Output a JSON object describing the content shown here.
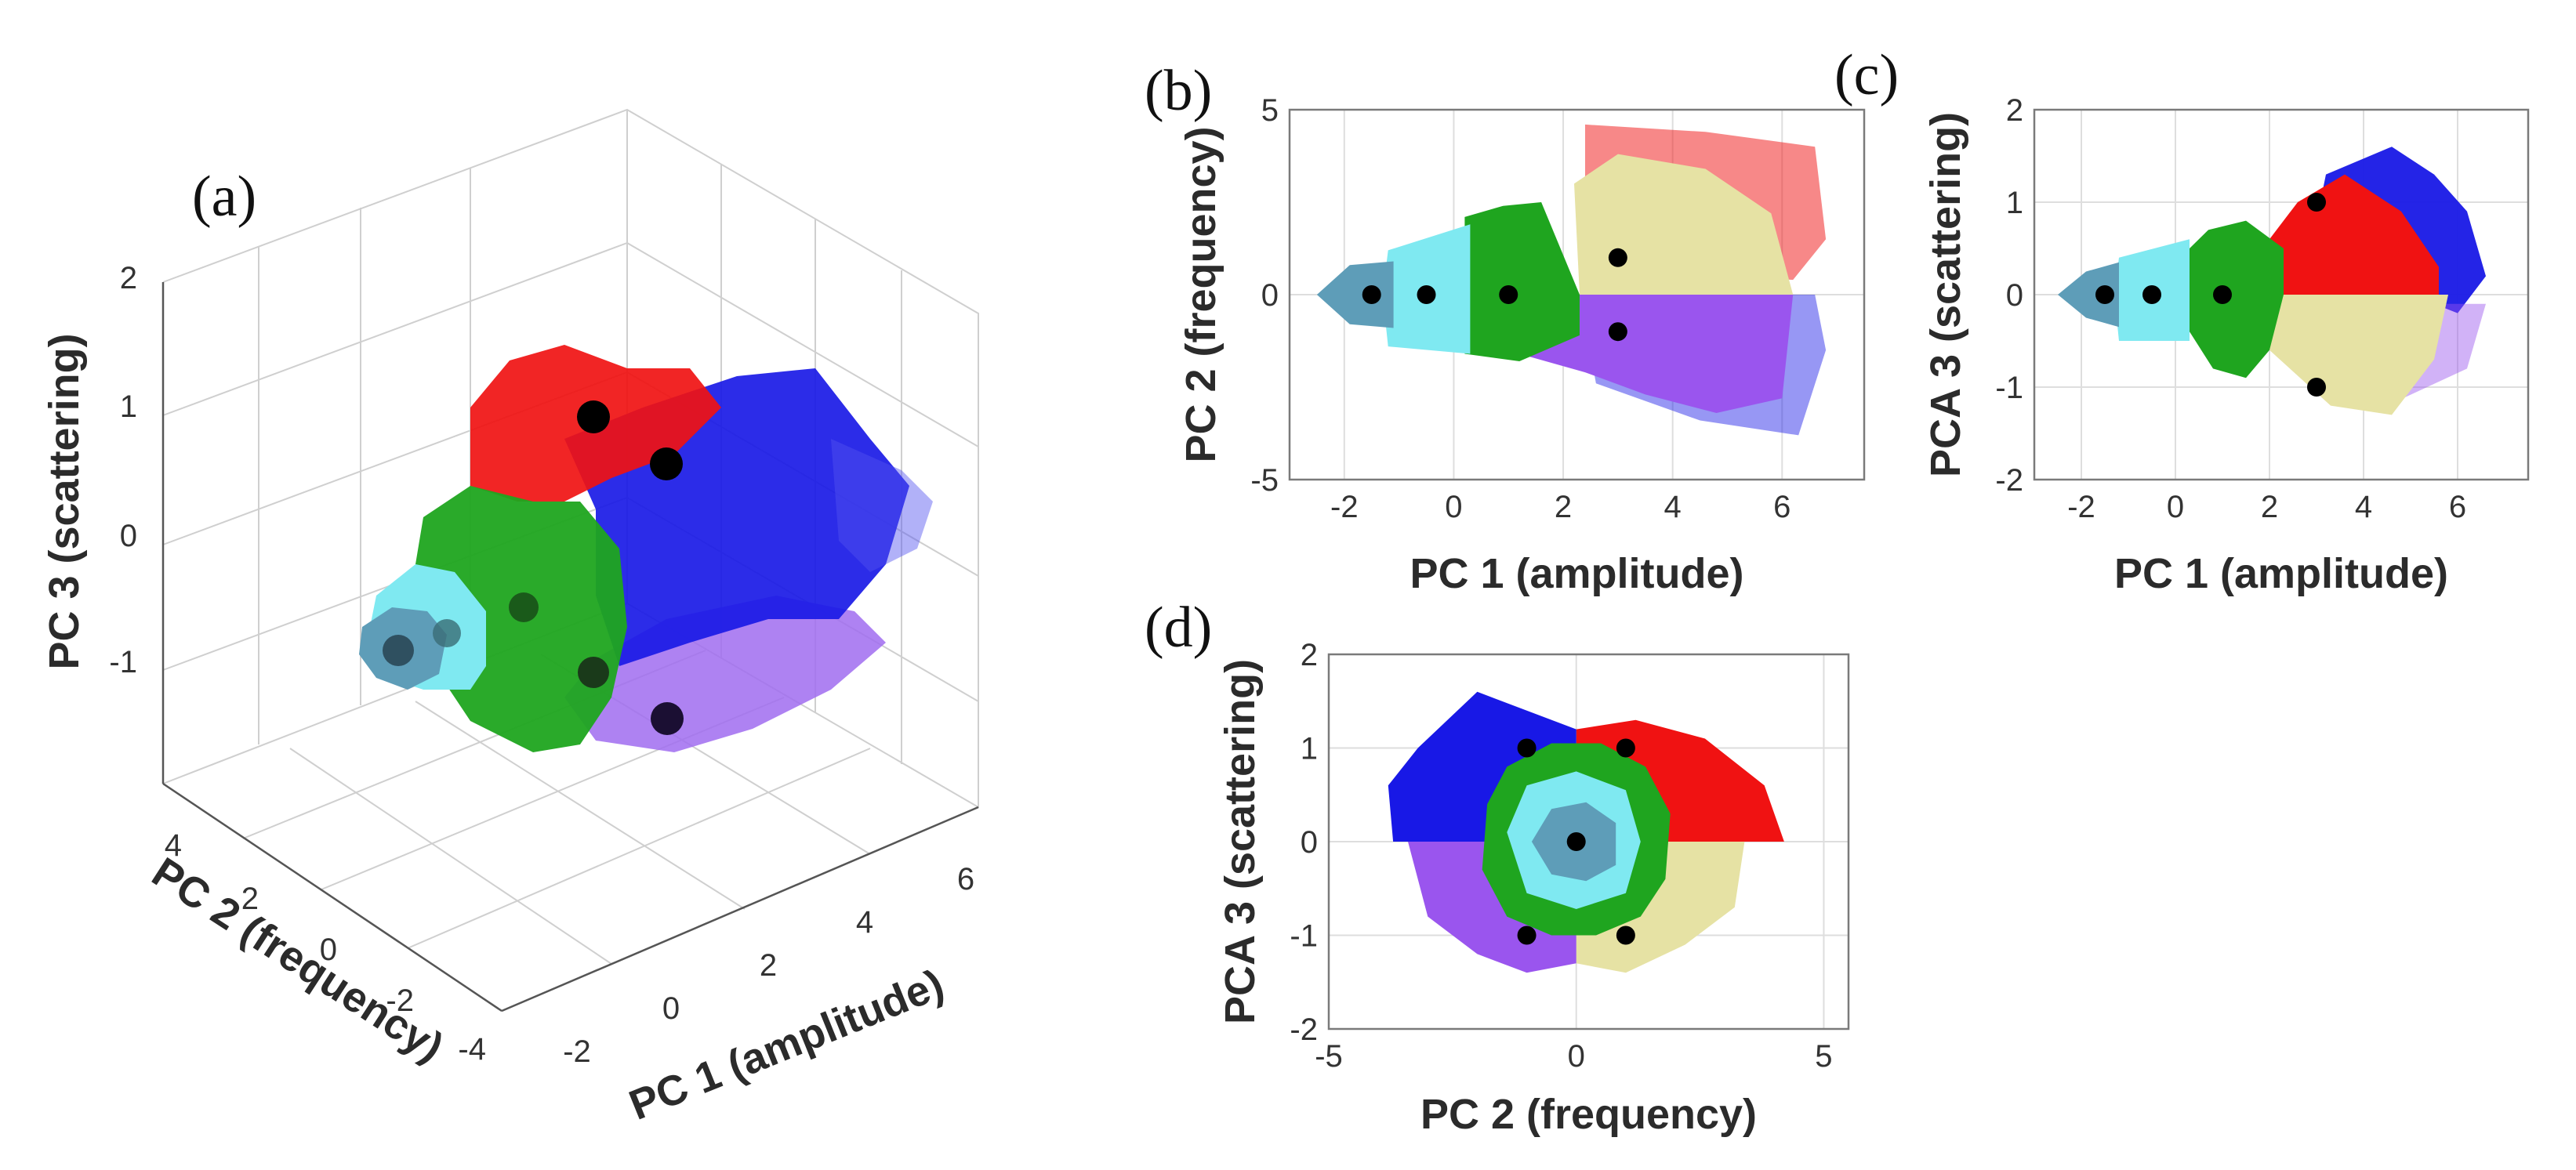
{
  "chart_data": [
    {
      "panel": "(a)",
      "type": "scatter",
      "title": "",
      "xlabel": "PC 1 (amplitude)",
      "ylabel": "PC 2 (frequency)",
      "zlabel": "PC 3 (scattering)",
      "x_ticks": [
        -2,
        0,
        2,
        4,
        6
      ],
      "y_ticks": [
        -4,
        -2,
        0,
        2,
        4
      ],
      "z_ticks": [
        -1,
        0,
        1,
        2
      ],
      "xlim": [
        -3,
        7
      ],
      "ylim": [
        -5,
        5
      ],
      "zlim": [
        -2,
        2
      ],
      "grid": true,
      "centroids": [
        {
          "x": -1.5,
          "y": 0,
          "z": 0
        },
        {
          "x": -0.5,
          "y": 0,
          "z": 0
        },
        {
          "x": 1,
          "y": 0,
          "z": 0
        },
        {
          "x": 3,
          "y": 1,
          "z": 1
        },
        {
          "x": 3,
          "y": -1,
          "z": -1
        },
        {
          "x": 3,
          "y": 1,
          "z": -1
        },
        {
          "x": 3,
          "y": -1,
          "z": 1
        }
      ]
    },
    {
      "panel": "(b)",
      "type": "scatter",
      "title": "",
      "xlabel": "PC 1 (amplitude)",
      "ylabel": "PC 2 (frequency)",
      "xlim": [
        -3,
        7.5
      ],
      "ylim": [
        -5,
        5
      ],
      "x_ticks": [
        -2,
        0,
        2,
        4,
        6
      ],
      "y_ticks": [
        -5,
        0,
        5
      ],
      "grid": true,
      "centroids": [
        {
          "x": -1.5,
          "y": 0
        },
        {
          "x": -0.5,
          "y": 0
        },
        {
          "x": 1,
          "y": 0
        },
        {
          "x": 3,
          "y": 1
        },
        {
          "x": 3,
          "y": -1
        }
      ]
    },
    {
      "panel": "(c)",
      "type": "scatter",
      "title": "",
      "xlabel": "PC 1 (amplitude)",
      "ylabel": "PCA 3 (scattering)",
      "xlim": [
        -3,
        7.5
      ],
      "ylim": [
        -2,
        2
      ],
      "x_ticks": [
        -2,
        0,
        2,
        4,
        6
      ],
      "y_ticks": [
        -2,
        -1,
        0,
        1,
        2
      ],
      "grid": true,
      "centroids": [
        {
          "x": -1.5,
          "y": 0
        },
        {
          "x": -0.5,
          "y": 0
        },
        {
          "x": 1,
          "y": 0
        },
        {
          "x": 3,
          "y": 1
        },
        {
          "x": 3,
          "y": -1
        }
      ]
    },
    {
      "panel": "(d)",
      "type": "scatter",
      "title": "",
      "xlabel": "PC 2 (frequency)",
      "ylabel": "PCA 3 (scattering)",
      "xlim": [
        -5,
        5.5
      ],
      "ylim": [
        -2,
        2
      ],
      "x_ticks": [
        -5,
        0,
        5
      ],
      "y_ticks": [
        -2,
        -1,
        0,
        1,
        2
      ],
      "grid": true,
      "centroids": [
        {
          "x": 0,
          "y": 0
        },
        {
          "x": -1,
          "y": 1
        },
        {
          "x": 1,
          "y": 1
        },
        {
          "x": -1,
          "y": -1
        },
        {
          "x": 1,
          "y": -1
        }
      ]
    }
  ],
  "colors": {
    "cluster_steelblue": "#5e9db8",
    "cluster_cyan": "#7fe9f1",
    "cluster_green": "#1fa51f",
    "cluster_khaki": "#e6e2a4",
    "cluster_red": "#f01212",
    "cluster_blue": "#1818e6",
    "cluster_purple": "#9a55ee",
    "centroid": "#000000"
  }
}
